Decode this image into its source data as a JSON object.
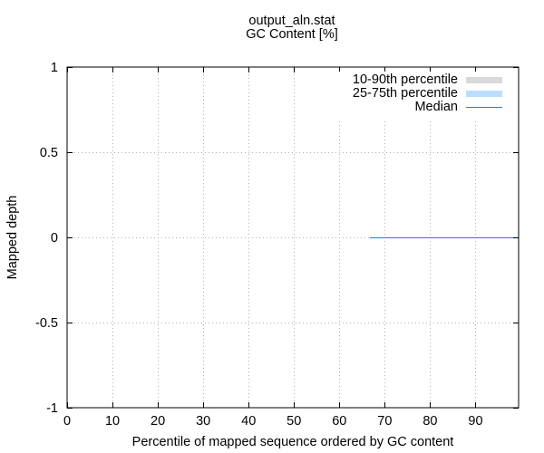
{
  "chart_data": {
    "type": "line",
    "title": "output_aln.stat",
    "subtitle": "GC Content [%]",
    "xlabel": "Percentile of mapped sequence ordered by GC content",
    "ylabel": "Mapped depth",
    "xlim": [
      0,
      99.5
    ],
    "ylim": [
      -1,
      1
    ],
    "xticks": [
      "0",
      "10",
      "20",
      "30",
      "40",
      "50",
      "60",
      "70",
      "80",
      "90"
    ],
    "xtick_values": [
      0,
      10,
      20,
      30,
      40,
      50,
      60,
      70,
      80,
      90
    ],
    "yticks": [
      "-1",
      "-0.5",
      "0",
      "0.5",
      "1"
    ],
    "ytick_values": [
      -1,
      -0.5,
      0,
      0.5,
      1
    ],
    "grid": true,
    "legend_position": "top-right",
    "series": [
      {
        "name": "10-90th percentile",
        "kind": "band",
        "color": "#d9d9d9",
        "points": []
      },
      {
        "name": "25-75th percentile",
        "kind": "band",
        "color": "#bbdeff",
        "points": []
      },
      {
        "name": "Median",
        "kind": "line",
        "color": "#2a7fb5",
        "points": [
          [
            66.7,
            0
          ],
          [
            99.5,
            0
          ]
        ]
      }
    ]
  }
}
